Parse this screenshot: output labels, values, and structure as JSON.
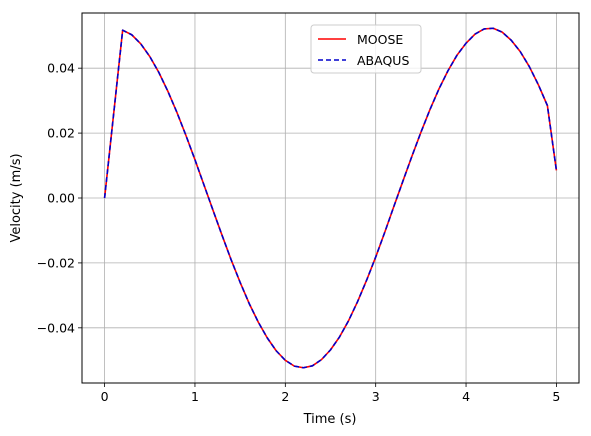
{
  "chart_data": {
    "type": "line",
    "title": "",
    "xlabel": "Time (s)",
    "ylabel": "Velocity (m/s)",
    "xlim": [
      -0.25,
      5.25
    ],
    "ylim": [
      -0.057,
      0.057
    ],
    "xticks": [
      0,
      1,
      2,
      3,
      4,
      5
    ],
    "xtick_labels": [
      "0",
      "1",
      "2",
      "3",
      "4",
      "5"
    ],
    "yticks": [
      -0.04,
      -0.02,
      0.0,
      0.02,
      0.04
    ],
    "ytick_labels": [
      "−0.04",
      "−0.02",
      "0.00",
      "0.02",
      "0.04"
    ],
    "grid": true,
    "legend": {
      "position": "top-center"
    },
    "x": [
      0.0,
      0.2,
      0.3,
      0.4,
      0.5,
      0.6,
      0.7,
      0.8,
      0.9,
      1.0,
      1.1,
      1.2,
      1.3,
      1.4,
      1.5,
      1.6,
      1.7,
      1.8,
      1.9,
      2.0,
      2.1,
      2.2,
      2.3,
      2.4,
      2.5,
      2.6,
      2.7,
      2.8,
      2.9,
      3.0,
      3.1,
      3.2,
      3.3,
      3.4,
      3.5,
      3.6,
      3.7,
      3.8,
      3.9,
      4.0,
      4.1,
      4.2,
      4.3,
      4.4,
      4.5,
      4.6,
      4.7,
      4.8,
      4.9,
      5.0
    ],
    "series": [
      {
        "name": "MOOSE",
        "color": "#ff0000",
        "dash": "solid",
        "values": [
          0.0,
          0.0517,
          0.0503,
          0.0475,
          0.0436,
          0.0387,
          0.0329,
          0.0264,
          0.0193,
          0.0118,
          0.004,
          -0.0038,
          -0.0115,
          -0.019,
          -0.026,
          -0.0325,
          -0.0382,
          -0.0431,
          -0.0471,
          -0.05,
          -0.0518,
          -0.0523,
          -0.0517,
          -0.0498,
          -0.0468,
          -0.0428,
          -0.0378,
          -0.0319,
          -0.0253,
          -0.0182,
          -0.0106,
          -0.0027,
          0.0051,
          0.0128,
          0.0202,
          0.0272,
          0.0336,
          0.0392,
          0.044,
          0.0477,
          0.0505,
          0.0521,
          0.0523,
          0.0511,
          0.0486,
          0.0451,
          0.0405,
          0.0349,
          0.0285,
          0.0085
        ]
      },
      {
        "name": "ABAQUS",
        "color": "#0000cc",
        "dash": "dashed",
        "values": [
          0.0,
          0.0517,
          0.0503,
          0.0475,
          0.0436,
          0.0387,
          0.0329,
          0.0264,
          0.0193,
          0.0118,
          0.004,
          -0.0038,
          -0.0115,
          -0.019,
          -0.026,
          -0.0325,
          -0.0382,
          -0.0431,
          -0.0471,
          -0.05,
          -0.0518,
          -0.0523,
          -0.0517,
          -0.0498,
          -0.0468,
          -0.0428,
          -0.0378,
          -0.0319,
          -0.0253,
          -0.0182,
          -0.0106,
          -0.0027,
          0.0051,
          0.0128,
          0.0202,
          0.0272,
          0.0336,
          0.0392,
          0.044,
          0.0477,
          0.0505,
          0.0521,
          0.0523,
          0.0511,
          0.0486,
          0.0451,
          0.0405,
          0.0349,
          0.0285,
          0.0085
        ]
      }
    ]
  }
}
